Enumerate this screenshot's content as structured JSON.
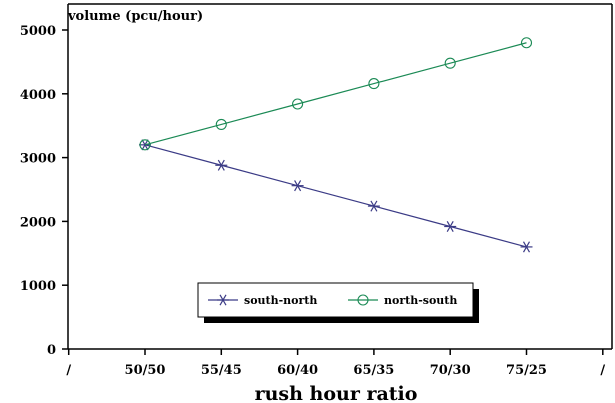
{
  "chart_data": {
    "type": "line",
    "title": "",
    "xlabel": "rush hour ratio",
    "ylabel": "volume (pcu/hour)",
    "categories": [
      "50/50",
      "55/45",
      "60/40",
      "65/35",
      "70/30",
      "75/25"
    ],
    "x_axis_end_labels": [
      "/",
      "/"
    ],
    "ylim": [
      0,
      5000
    ],
    "yticks": [
      0,
      1000,
      2000,
      3000,
      4000,
      5000
    ],
    "grid": false,
    "legend_position": "bottom-center",
    "series": [
      {
        "name": "south-north",
        "values": [
          3200,
          2880,
          2560,
          2240,
          1920,
          1600
        ],
        "color": "#3b3b86",
        "marker": "asterisk"
      },
      {
        "name": "north-south",
        "values": [
          3200,
          3520,
          3840,
          4160,
          4480,
          4800
        ],
        "color": "#1b8a55",
        "marker": "circle"
      }
    ]
  }
}
